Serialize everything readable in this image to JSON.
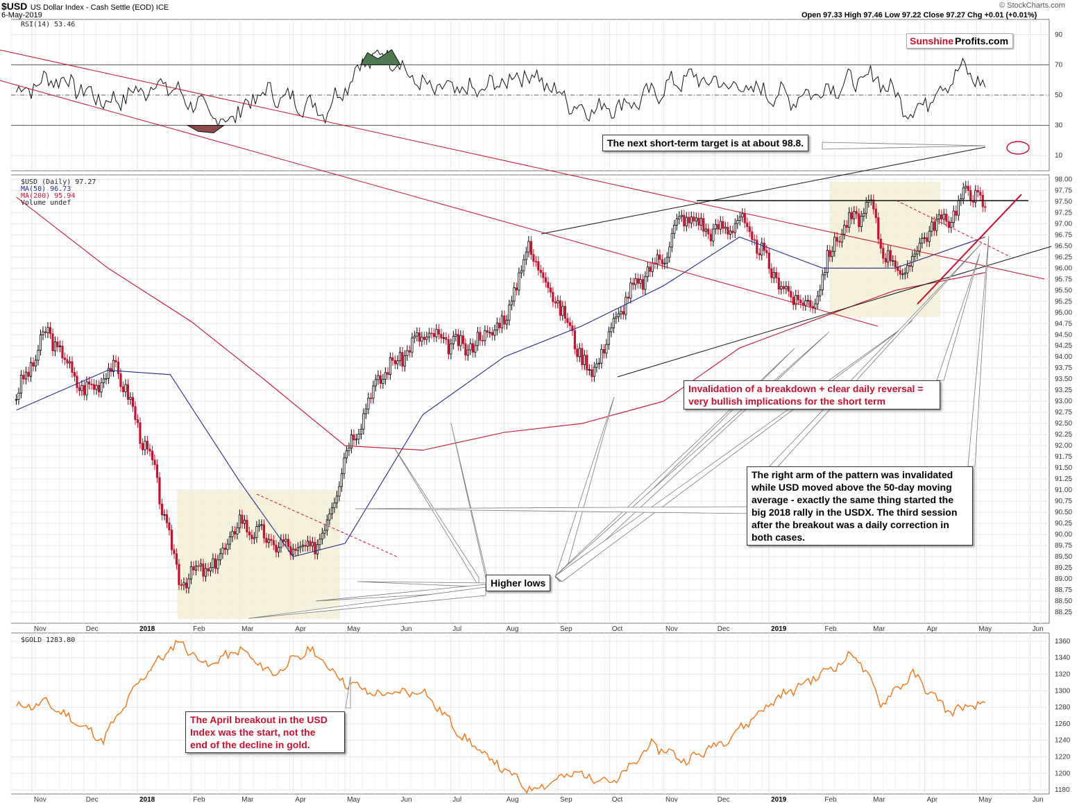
{
  "header": {
    "symbol": "$USD",
    "name": "US Dollar Index - Cash Settle (EOD) ICE",
    "date": "6-May-2019",
    "ohlc": "Open 97.33  High 97.46  Low 97.22  Close 97.27  Chg +0.01 (+0.01%)",
    "watermark": "© StockCharts.com"
  },
  "logo": {
    "part1": "Sunshine",
    "part2": "Profits.com"
  },
  "legends": {
    "rsi": "RSI(14) 53.46",
    "price": "$USD (Daily) 97.27",
    "ma50": "MA(50) 96.73",
    "ma200": "MA(200) 95.94",
    "volume": "Volume undef",
    "gold": "$GOLD 1283.80"
  },
  "annotations": {
    "target": "The next short-term target is at about 98.8.",
    "invalidation_line1": "Invalidation of a breakdown + clear daily reversal =",
    "invalidation_line2": "very bullish implications for the short term",
    "right_arm_1": "The right arm of the pattern was invalidated",
    "right_arm_2": "while USD moved above the 50-day moving",
    "right_arm_3": "average - exactly the same thing started the",
    "right_arm_4": "big 2018 rally in the USDX. The third session",
    "right_arm_5": "after the breakout was a daily correction in",
    "right_arm_6": "both cases.",
    "higher_lows": "Higher lows",
    "april_1": "The April breakout in the USD",
    "april_2": "Index was the start, not the",
    "april_3": "end of the decline in gold."
  },
  "colors": {
    "up": "#000000",
    "down": "#c8102e",
    "ma50": "#1f2a8a",
    "ma200": "#c8102e",
    "gold": "#f07c1e",
    "rsi_over": "#4f7a4f",
    "rsi_under": "#8c4a4a",
    "box": "#f2eed2"
  },
  "chart_data": [
    {
      "type": "line",
      "title": "RSI(14)",
      "ylim": [
        0,
        100
      ],
      "ticks": [
        10,
        30,
        50,
        70,
        90
      ],
      "levels": [
        30,
        50,
        70
      ],
      "x": [
        "2017-10-23",
        "2017-11-15",
        "2017-12-15",
        "2018-01-15",
        "2018-02-20",
        "2018-03-15",
        "2018-04-20",
        "2018-05-10",
        "2018-05-25",
        "2018-06-15",
        "2018-07-15",
        "2018-08-15",
        "2018-09-15",
        "2018-10-15",
        "2018-11-15",
        "2018-12-15",
        "2019-01-15",
        "2019-02-15",
        "2019-03-05",
        "2019-03-25",
        "2019-04-15",
        "2019-04-25",
        "2019-05-06"
      ],
      "values": [
        52,
        62,
        45,
        58,
        32,
        52,
        40,
        70,
        78,
        55,
        52,
        65,
        40,
        45,
        62,
        55,
        48,
        58,
        62,
        38,
        60,
        68,
        53
      ]
    },
    {
      "type": "candlestick",
      "title": "$USD (Daily)",
      "ylim": [
        88.0,
        98.1
      ],
      "ticks": [
        88.25,
        88.5,
        88.75,
        89.0,
        89.25,
        89.5,
        89.75,
        90.0,
        90.25,
        90.5,
        90.75,
        91.0,
        91.25,
        91.5,
        91.75,
        92.0,
        92.25,
        92.5,
        92.75,
        93.0,
        93.25,
        93.5,
        93.75,
        94.0,
        94.25,
        94.5,
        94.75,
        95.0,
        95.25,
        95.5,
        95.75,
        96.0,
        96.25,
        96.5,
        96.75,
        97.0,
        97.25,
        97.5,
        97.75,
        98.0
      ],
      "x_labels": [
        "Nov",
        "Dec",
        "2018",
        "Feb",
        "Mar",
        "Apr",
        "May",
        "Jun",
        "Jul",
        "Aug",
        "Sep",
        "Oct",
        "Nov",
        "Dec",
        "2019",
        "Feb",
        "Mar",
        "Apr",
        "May",
        "Jun"
      ],
      "x_bold": [
        "2018",
        "2019"
      ],
      "x": [
        "2017-10-23",
        "2017-11-10",
        "2017-12-01",
        "2017-12-20",
        "2018-01-10",
        "2018-01-25",
        "2018-02-15",
        "2018-03-01",
        "2018-03-20",
        "2018-04-10",
        "2018-04-20",
        "2018-05-01",
        "2018-05-20",
        "2018-06-15",
        "2018-07-10",
        "2018-08-01",
        "2018-08-15",
        "2018-09-01",
        "2018-09-20",
        "2018-10-10",
        "2018-11-01",
        "2018-11-12",
        "2018-12-01",
        "2018-12-15",
        "2019-01-10",
        "2019-01-25",
        "2019-02-10",
        "2019-03-01",
        "2019-03-07",
        "2019-03-20",
        "2019-04-01",
        "2019-04-20",
        "2019-04-26",
        "2019-05-06"
      ],
      "close": [
        93.1,
        94.6,
        93.2,
        93.8,
        91.5,
        89.0,
        89.3,
        90.3,
        89.8,
        89.6,
        90.2,
        91.8,
        93.5,
        94.5,
        94.2,
        94.8,
        96.5,
        95.2,
        93.6,
        95.3,
        96.3,
        97.2,
        96.8,
        97.1,
        95.5,
        95.1,
        96.8,
        97.4,
        96.5,
        95.8,
        96.8,
        97.3,
        97.9,
        97.27
      ],
      "ma50": {
        "x": [
          "2017-10-23",
          "2017-12-15",
          "2018-01-20",
          "2018-03-01",
          "2018-04-01",
          "2018-05-01",
          "2018-06-15",
          "2018-08-01",
          "2018-09-15",
          "2018-11-01",
          "2018-12-15",
          "2019-02-01",
          "2019-03-15",
          "2019-05-06"
        ],
        "values": [
          92.8,
          93.7,
          93.6,
          91.2,
          89.5,
          89.8,
          92.7,
          94.0,
          94.7,
          95.6,
          96.7,
          96.0,
          96.0,
          96.7
        ]
      },
      "ma200": {
        "x": [
          "2017-10-23",
          "2017-12-15",
          "2018-02-01",
          "2018-03-15",
          "2018-05-01",
          "2018-06-15",
          "2018-08-01",
          "2018-09-15",
          "2018-11-01",
          "2018-12-15",
          "2019-02-01",
          "2019-03-15",
          "2019-05-06"
        ],
        "values": [
          97.6,
          96.0,
          94.8,
          93.5,
          92.0,
          91.9,
          92.3,
          92.5,
          93.0,
          94.2,
          94.9,
          95.5,
          95.9
        ]
      }
    },
    {
      "type": "line",
      "title": "$GOLD",
      "ylim": [
        1175,
        1370
      ],
      "ticks": [
        1180,
        1200,
        1220,
        1240,
        1260,
        1280,
        1300,
        1320,
        1340,
        1360
      ],
      "x": [
        "2017-10-23",
        "2017-11-10",
        "2017-12-12",
        "2018-01-05",
        "2018-01-25",
        "2018-02-10",
        "2018-03-01",
        "2018-03-20",
        "2018-04-11",
        "2018-05-01",
        "2018-05-20",
        "2018-06-15",
        "2018-07-10",
        "2018-08-16",
        "2018-09-10",
        "2018-10-05",
        "2018-10-25",
        "2018-11-15",
        "2018-12-10",
        "2019-01-05",
        "2019-01-31",
        "2019-02-20",
        "2019-03-07",
        "2019-03-25",
        "2019-04-15",
        "2019-05-06"
      ],
      "values": [
        1280,
        1285,
        1240,
        1320,
        1360,
        1330,
        1350,
        1320,
        1350,
        1310,
        1295,
        1300,
        1240,
        1180,
        1200,
        1190,
        1235,
        1215,
        1245,
        1290,
        1320,
        1345,
        1285,
        1320,
        1275,
        1283.8
      ]
    }
  ]
}
